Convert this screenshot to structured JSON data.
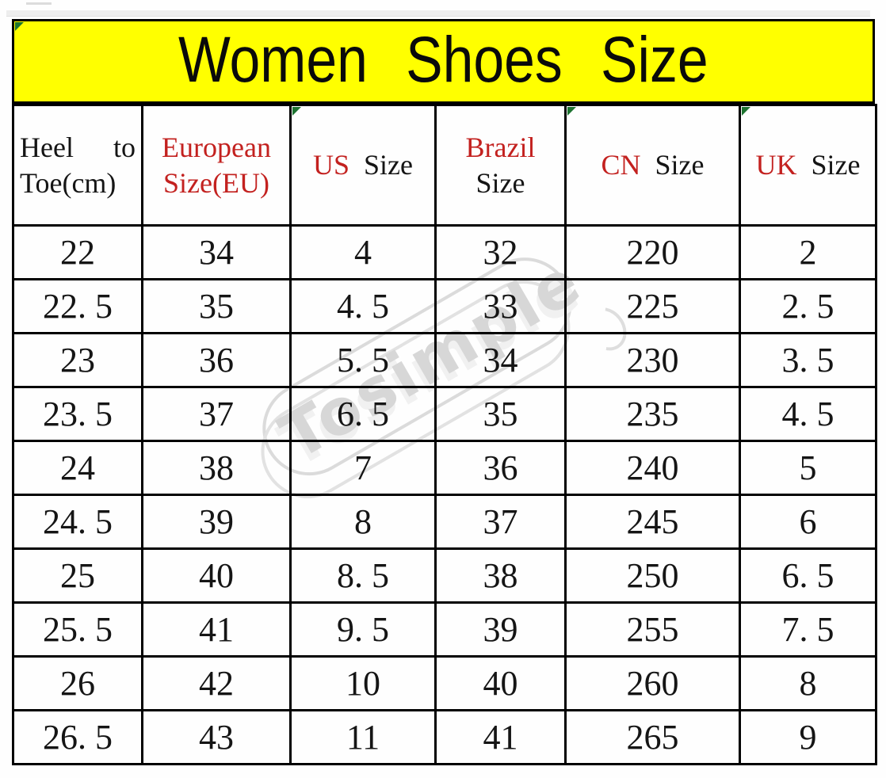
{
  "title_banner": {
    "text": "Women Shoes Size"
  },
  "watermark": {
    "text": "Tosimple"
  },
  "colors": {
    "banner_yellow": "#ffff00",
    "accent_red": "#c3211f",
    "text_black": "#151515",
    "border_black": "#000000",
    "green_marker": "#1d7330",
    "watermark_gray": "#d7d7d7"
  },
  "table": {
    "columns": [
      {
        "id": "heel-to-toe-cm",
        "align": "left",
        "header_lines": [
          {
            "justify": true,
            "segments": [
              {
                "t": "Heel",
                "c": "black"
              },
              {
                "t": "to",
                "c": "black"
              }
            ]
          },
          {
            "segments": [
              {
                "t": "Toe(cm)",
                "c": "black"
              }
            ]
          }
        ]
      },
      {
        "id": "european-size-eu",
        "header_lines": [
          {
            "segments": [
              {
                "t": "European",
                "c": "red"
              }
            ]
          },
          {
            "segments": [
              {
                "t": "Size(EU)",
                "c": "red"
              }
            ]
          }
        ]
      },
      {
        "id": "us-size",
        "header_lines": [
          {
            "segments": [
              {
                "t": "US",
                "c": "red"
              },
              {
                "t": "  Size",
                "c": "black"
              }
            ]
          }
        ]
      },
      {
        "id": "brazil-size",
        "header_lines": [
          {
            "segments": [
              {
                "t": "Brazil",
                "c": "red"
              }
            ]
          },
          {
            "segments": [
              {
                "t": "Size",
                "c": "black"
              }
            ]
          }
        ]
      },
      {
        "id": "cn-size",
        "header_lines": [
          {
            "segments": [
              {
                "t": "CN",
                "c": "red"
              },
              {
                "t": "  Size",
                "c": "black"
              }
            ]
          }
        ]
      },
      {
        "id": "uk-size",
        "header_lines": [
          {
            "segments": [
              {
                "t": "UK",
                "c": "red"
              },
              {
                "t": "  Size",
                "c": "black"
              }
            ]
          }
        ]
      }
    ],
    "red_value_column_index": 1
  },
  "chart_data": {
    "type": "table",
    "title": "Women Shoes Size",
    "columns": [
      "Heel to Toe(cm)",
      "European Size(EU)",
      "US Size",
      "Brazil Size",
      "CN Size",
      "UK Size"
    ],
    "rows": [
      [
        22,
        34,
        4,
        32,
        220,
        2
      ],
      [
        22.5,
        35,
        4.5,
        33,
        225,
        2.5
      ],
      [
        23,
        36,
        5.5,
        34,
        230,
        3.5
      ],
      [
        23.5,
        37,
        6.5,
        35,
        235,
        4.5
      ],
      [
        24,
        38,
        7,
        36,
        240,
        5
      ],
      [
        24.5,
        39,
        8,
        37,
        245,
        6
      ],
      [
        25,
        40,
        8.5,
        38,
        250,
        6.5
      ],
      [
        25.5,
        41,
        9.5,
        39,
        255,
        7.5
      ],
      [
        26,
        42,
        10,
        40,
        260,
        8
      ],
      [
        26.5,
        43,
        11,
        41,
        265,
        9
      ]
    ]
  }
}
